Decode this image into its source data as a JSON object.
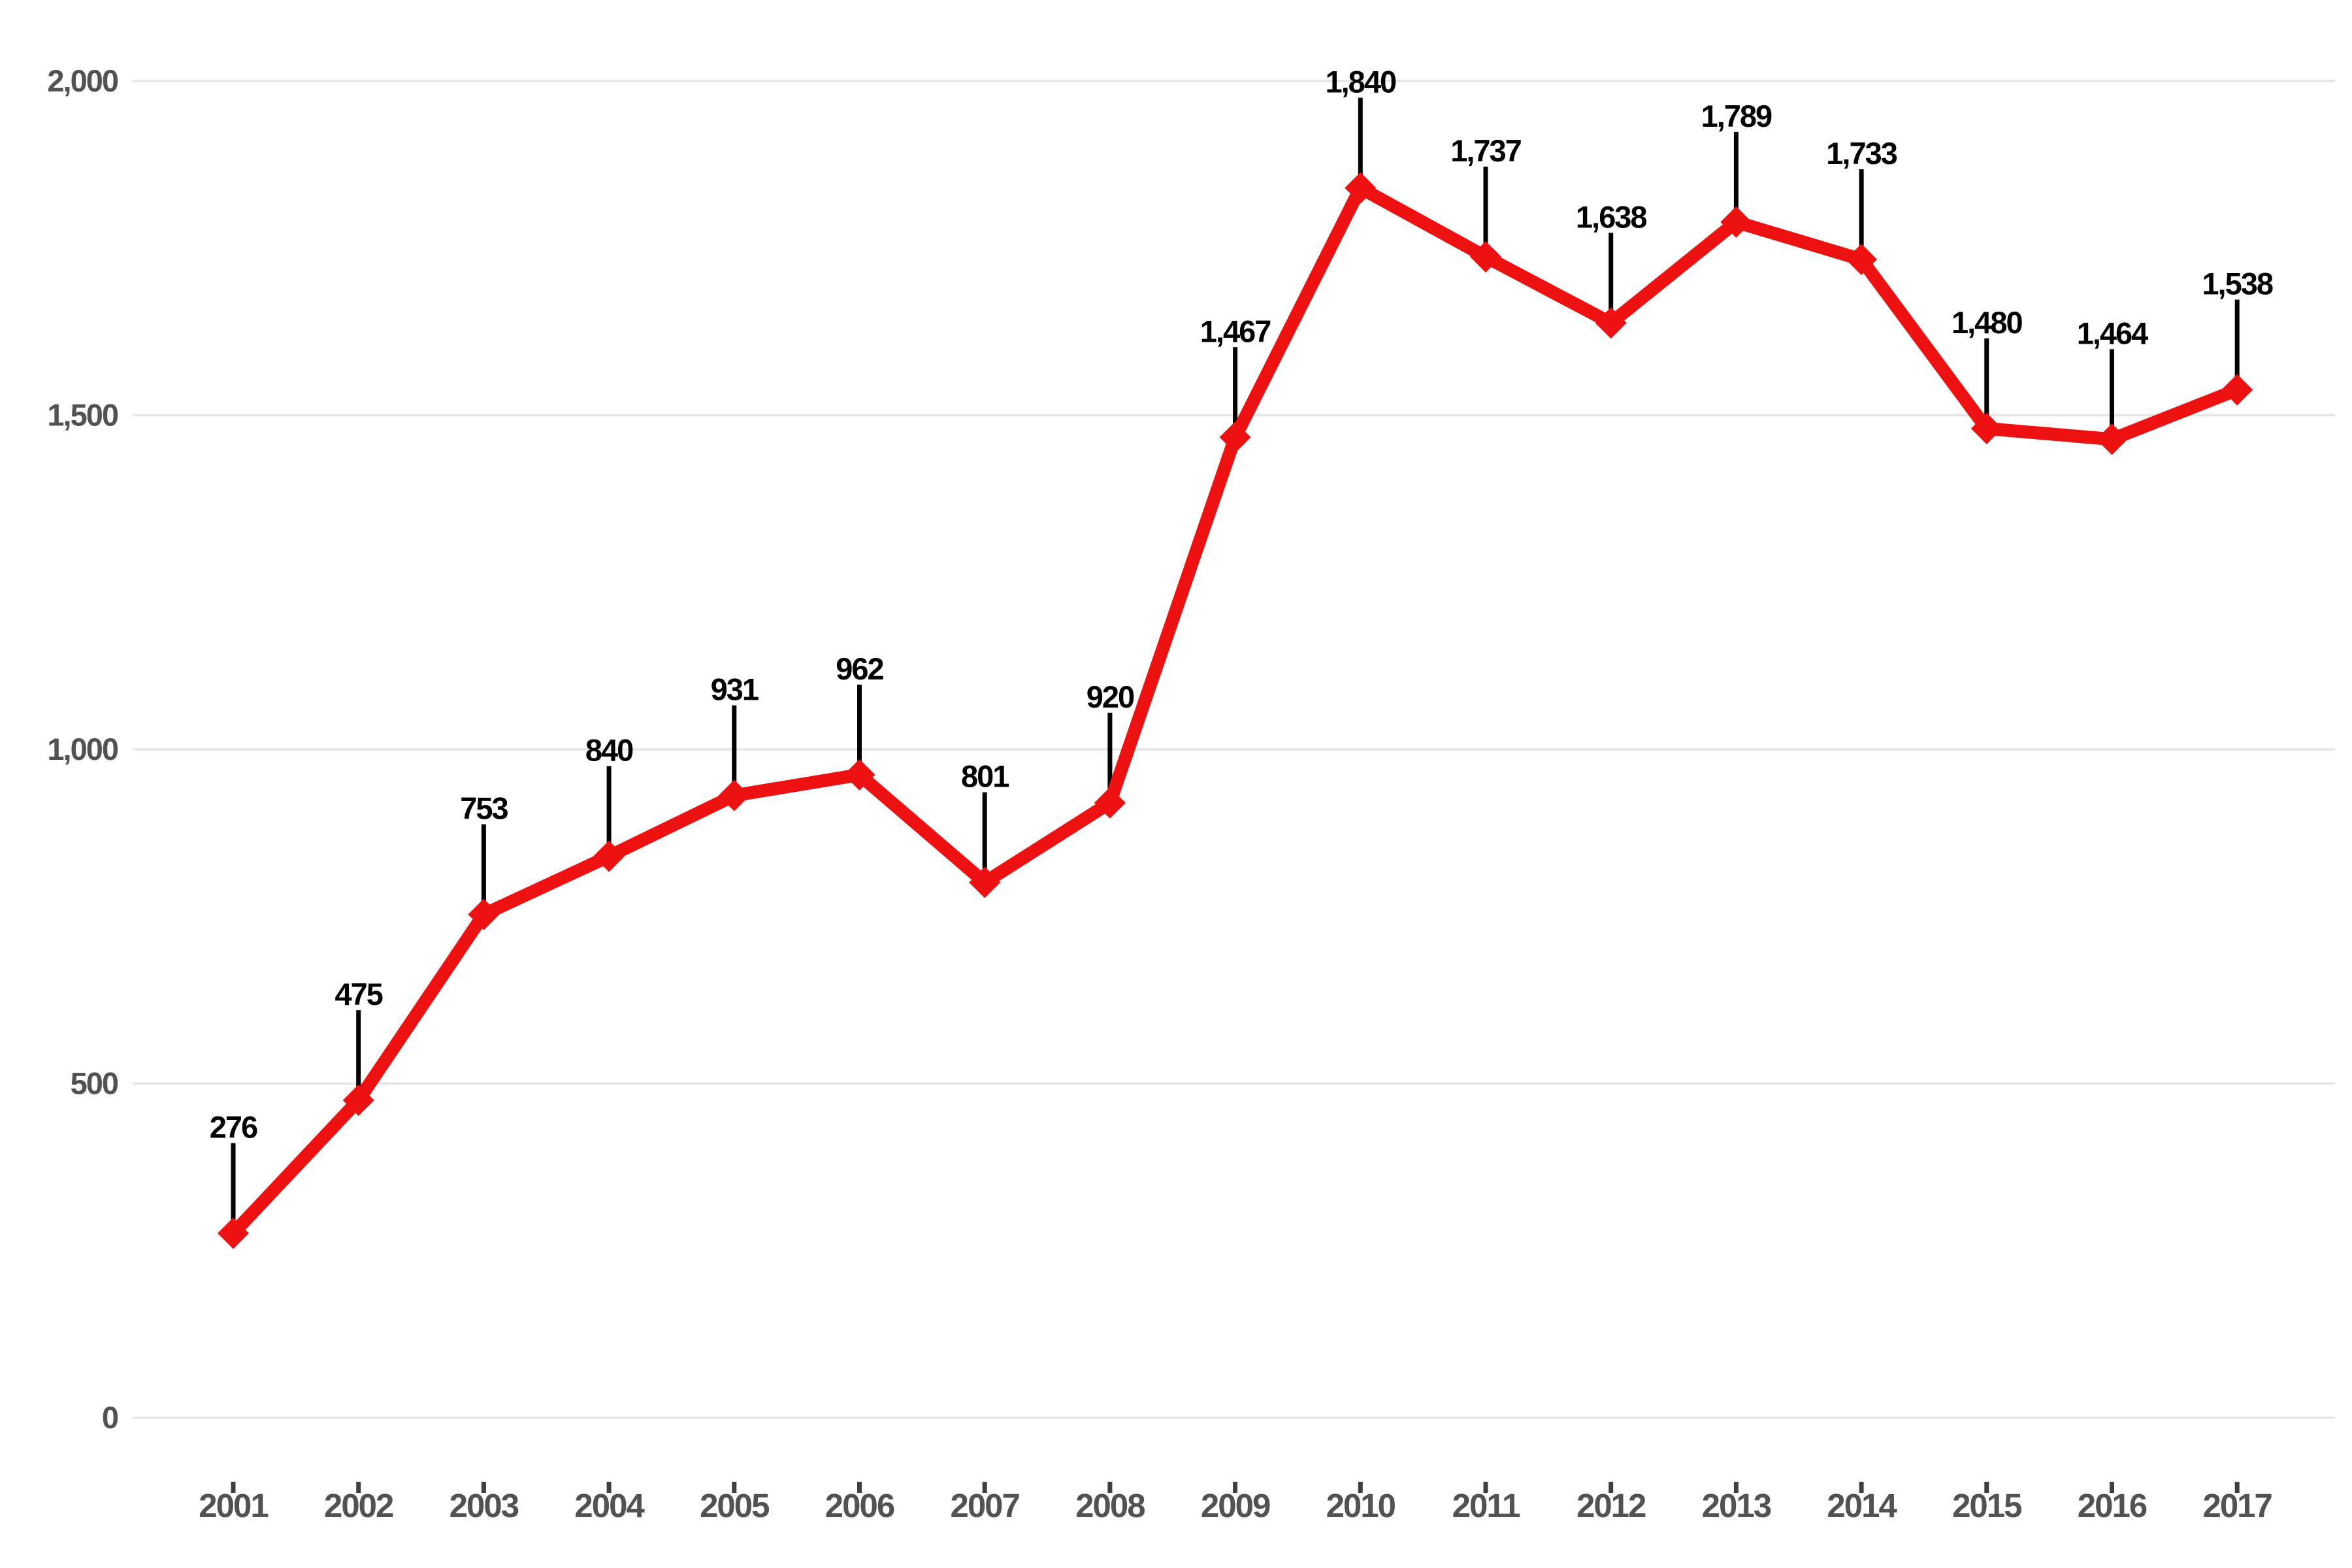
{
  "chart_data": {
    "type": "line",
    "title": "",
    "xlabel": "",
    "ylabel": "",
    "categories": [
      "2001",
      "2002",
      "2003",
      "2004",
      "2005",
      "2006",
      "2007",
      "2008",
      "2009",
      "2010",
      "2011",
      "2012",
      "2013",
      "2014",
      "2015",
      "2016",
      "2017"
    ],
    "series": [
      {
        "name": "annual-count",
        "values": [
          276,
          475,
          753,
          840,
          931,
          962,
          801,
          920,
          1467,
          1840,
          1737,
          1638,
          1789,
          1733,
          1480,
          1464,
          1538
        ],
        "value_labels": [
          "276",
          "475",
          "753",
          "840",
          "931",
          "962",
          "801",
          "920",
          "1,467",
          "1,840",
          "1,737",
          "1,638",
          "1,789",
          "1,733",
          "1,480",
          "1,464",
          "1,538"
        ]
      }
    ],
    "ylim": [
      0,
      2000
    ],
    "y_ticks": [
      {
        "value": 0,
        "label": "0"
      },
      {
        "value": 500,
        "label": "500"
      },
      {
        "value": 1000,
        "label": "1,000"
      },
      {
        "value": 1500,
        "label": "1,500"
      },
      {
        "value": 2000,
        "label": "2,000"
      }
    ],
    "grid": "horizontal-only",
    "legend_position": "none",
    "marker_shape": "diamond",
    "colors": {
      "line": "#ee1111",
      "marker": "#ee1111",
      "gridline": "#e6e6e6",
      "axis_labels": "#515254",
      "x_tick_mark": "#3f3f3f",
      "data_labels": "#000000",
      "leader_lines": "#000000",
      "background": "#ffffff"
    }
  }
}
